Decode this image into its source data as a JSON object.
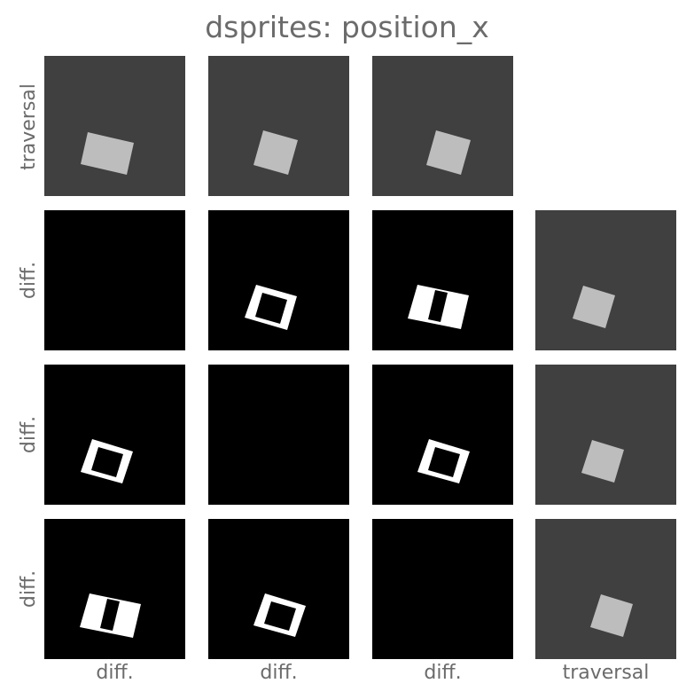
{
  "title": "dsprites: position_x",
  "row_labels": [
    "traversal",
    "diff.",
    "diff.",
    "diff."
  ],
  "col_labels": [
    "diff.",
    "diff.",
    "diff.",
    "traversal"
  ],
  "colors": {
    "traversal_background": "#404040",
    "sprite_fill": "#bdbdbd",
    "diff_background": "#000000",
    "diff_foreground": "#ffffff"
  },
  "grid": [
    [
      "traversal",
      "traversal",
      "traversal",
      "empty"
    ],
    [
      "diff",
      "diff",
      "diff",
      "traversal"
    ],
    [
      "diff",
      "diff",
      "diff",
      "traversal"
    ],
    [
      "diff",
      "diff",
      "diff",
      "traversal"
    ]
  ]
}
